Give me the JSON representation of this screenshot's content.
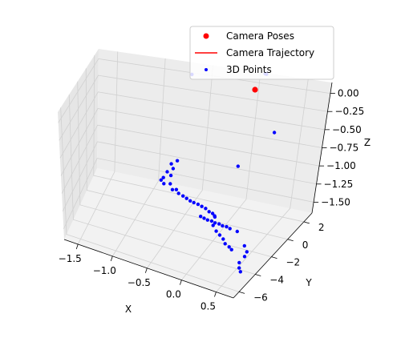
{
  "chart_data": {
    "type": "scatter",
    "projection": "3d",
    "xlabel": "X",
    "ylabel": "Y",
    "zlabel": "Z",
    "xlim": [
      -1.7,
      0.75
    ],
    "ylim": [
      -6.7,
      3.0
    ],
    "zlim": [
      -1.65,
      0.15
    ],
    "x_ticks": [
      -1.5,
      -1.0,
      -0.5,
      0.0,
      0.5
    ],
    "x_tick_labels": [
      "−1.5",
      "−1.0",
      "−0.5",
      "0.0",
      "0.5"
    ],
    "y_ticks": [
      -6,
      -4,
      -2,
      0,
      2
    ],
    "y_tick_labels": [
      "−6",
      "−4",
      "−2",
      "0",
      "2"
    ],
    "z_ticks": [
      0.0,
      -0.25,
      -0.5,
      -0.75,
      -1.0,
      -1.25,
      -1.5
    ],
    "z_tick_labels": [
      "0.00",
      "−0.25",
      "−0.50",
      "−0.75",
      "−1.00",
      "−1.25",
      "−1.50"
    ],
    "grid": true,
    "legend_position": "upper-right",
    "colors": {
      "camera_poses": "#ff0000",
      "trajectory": "#ff0000",
      "points": "#0000ff"
    },
    "legend": [
      "Camera Poses",
      "Camera Trajectory",
      "3D Points"
    ],
    "camera_poses": [
      {
        "x": 0.02,
        "y": 2.2,
        "z": 0.0
      }
    ],
    "points": [
      [
        -0.7,
        2.8,
        0.0
      ],
      [
        0.1,
        2.4,
        0.22
      ],
      [
        0.1,
        2.5,
        0.2
      ],
      [
        0.09,
        2.45,
        0.21
      ],
      [
        0.11,
        2.35,
        0.23
      ],
      [
        0.55,
        -1.1,
        -0.08
      ],
      [
        0.33,
        -3.0,
        -0.38
      ],
      [
        -0.76,
        2.2,
        -1.2
      ],
      [
        -0.82,
        2.1,
        -1.25
      ],
      [
        -0.79,
        2.0,
        -1.3
      ],
      [
        -0.85,
        1.9,
        -1.35
      ],
      [
        -0.88,
        1.7,
        -1.42
      ],
      [
        -0.9,
        1.6,
        -1.45
      ],
      [
        -0.8,
        1.8,
        -1.38
      ],
      [
        -0.86,
        1.5,
        -1.48
      ],
      [
        -0.78,
        1.4,
        -1.45
      ],
      [
        -0.7,
        1.3,
        -1.5
      ],
      [
        -0.74,
        1.2,
        -1.5
      ],
      [
        -0.66,
        1.1,
        -1.52
      ],
      [
        -0.6,
        1.0,
        -1.53
      ],
      [
        -0.55,
        0.9,
        -1.54
      ],
      [
        -0.5,
        0.8,
        -1.55
      ],
      [
        -0.45,
        0.7,
        -1.55
      ],
      [
        -0.4,
        0.7,
        -1.56
      ],
      [
        -0.35,
        0.65,
        -1.57
      ],
      [
        -0.3,
        0.6,
        -1.58
      ],
      [
        -0.25,
        0.5,
        -1.6
      ],
      [
        -0.2,
        0.4,
        -1.6
      ],
      [
        -0.16,
        0.2,
        -1.6
      ],
      [
        -0.15,
        0.1,
        -1.6
      ],
      [
        -0.3,
        -0.2,
        -1.6
      ],
      [
        -0.25,
        -0.3,
        -1.6
      ],
      [
        -0.2,
        -0.4,
        -1.6
      ],
      [
        -0.15,
        -0.4,
        -1.6
      ],
      [
        -0.1,
        -0.5,
        -1.6
      ],
      [
        -0.05,
        -0.5,
        -1.6
      ],
      [
        0.0,
        -0.6,
        -1.6
      ],
      [
        0.05,
        -0.6,
        -1.6
      ],
      [
        0.1,
        -0.7,
        -1.6
      ],
      [
        0.2,
        -0.8,
        -1.6
      ],
      [
        -0.1,
        -0.8,
        -1.6
      ],
      [
        -0.02,
        -1.3,
        -1.6
      ],
      [
        0.05,
        -1.6,
        -1.6
      ],
      [
        0.12,
        -1.9,
        -1.6
      ],
      [
        0.18,
        -2.3,
        -1.6
      ],
      [
        0.25,
        -2.5,
        -1.6
      ],
      [
        0.3,
        -2.7,
        -1.6
      ],
      [
        0.4,
        -2.0,
        -1.6
      ],
      [
        0.48,
        -2.5,
        -1.6
      ],
      [
        0.5,
        -3.0,
        -1.6
      ],
      [
        0.5,
        -3.7,
        -1.6
      ],
      [
        0.55,
        -4.2,
        -1.6
      ],
      [
        0.6,
        -4.5,
        -1.6
      ]
    ]
  }
}
